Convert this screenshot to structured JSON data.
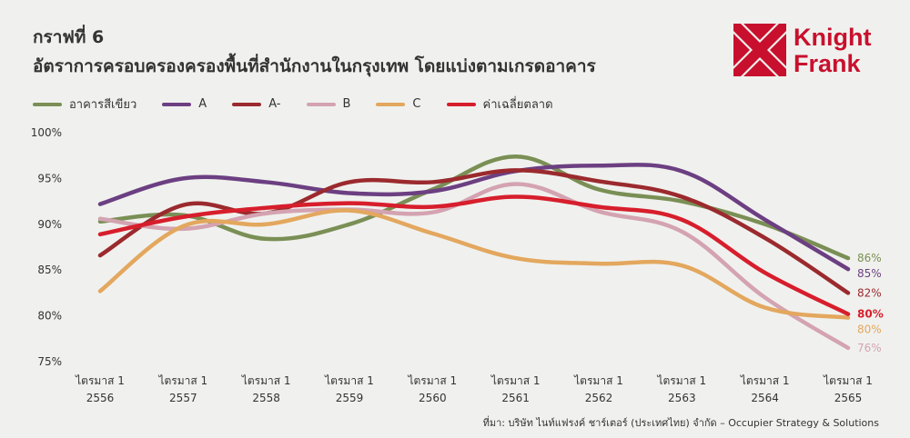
{
  "title": "กราฟที่ 6",
  "subtitle": "อัตราการครอบครองครองพื้นที่สำนักงานในกรุงเทพ โดยแบ่งตามเกรดอาคาร",
  "logo": {
    "line1": "Knight",
    "line2": "Frank",
    "brand_color": "#c8102e"
  },
  "source": "ที่มา: บริษัท ไนท์แฟรงค์ ชาร์เตอร์ (ประเทศไทย) จำกัด – Occupier Strategy & Solutions",
  "chart_data": {
    "type": "line",
    "categories": [
      [
        "ไตรมาส 1",
        "2556"
      ],
      [
        "ไตรมาส 1",
        "2557"
      ],
      [
        "ไตรมาส 1",
        "2558"
      ],
      [
        "ไตรมาส 1",
        "2559"
      ],
      [
        "ไตรมาส 1",
        "2560"
      ],
      [
        "ไตรมาส 1",
        "2561"
      ],
      [
        "ไตรมาส 1",
        "2562"
      ],
      [
        "ไตรมาส 1",
        "2563"
      ],
      [
        "ไตรมาส 1",
        "2564"
      ],
      [
        "ไตรมาส 1",
        "2565"
      ]
    ],
    "ylim": [
      75,
      100
    ],
    "yticks": [
      75,
      80,
      85,
      90,
      95,
      100
    ],
    "ytick_labels": [
      "75%",
      "80%",
      "85%",
      "90%",
      "95%",
      "100%"
    ],
    "grid": false,
    "legend_position": "top-left",
    "series": [
      {
        "name": "อาคารสีเขียว",
        "color": "#7a8f55",
        "values": [
          90.3,
          91.0,
          88.4,
          90.0,
          93.8,
          97.4,
          93.8,
          92.5,
          90.0,
          86.3
        ],
        "end_label": "86%",
        "bold": false
      },
      {
        "name": "A",
        "color": "#6c3f82",
        "values": [
          92.2,
          95.0,
          94.6,
          93.4,
          93.6,
          95.8,
          96.4,
          95.8,
          90.5,
          85.1
        ],
        "end_label": "85%",
        "bold": false
      },
      {
        "name": "A-",
        "color": "#9b2a2e",
        "values": [
          86.6,
          92.1,
          91.2,
          94.6,
          94.6,
          95.9,
          94.7,
          93.0,
          88.5,
          82.5
        ],
        "end_label": "82%",
        "bold": false
      },
      {
        "name": "B",
        "color": "#d4a3b1",
        "values": [
          90.6,
          89.5,
          91.2,
          91.6,
          91.3,
          94.4,
          91.4,
          89.2,
          82.0,
          76.5
        ],
        "end_label": "76%",
        "bold": false
      },
      {
        "name": "C",
        "color": "#e3a75e",
        "values": [
          82.7,
          89.8,
          90.0,
          91.5,
          89.0,
          86.3,
          85.7,
          85.5,
          80.9,
          79.8
        ],
        "end_label": "80%",
        "bold": false
      },
      {
        "name": "ค่าเฉลี่ยตลาด",
        "color": "#d71e2c",
        "values": [
          88.9,
          90.8,
          91.8,
          92.3,
          91.9,
          93.0,
          91.9,
          90.5,
          84.7,
          80.2
        ],
        "end_label": "80%",
        "bold": true
      }
    ]
  }
}
